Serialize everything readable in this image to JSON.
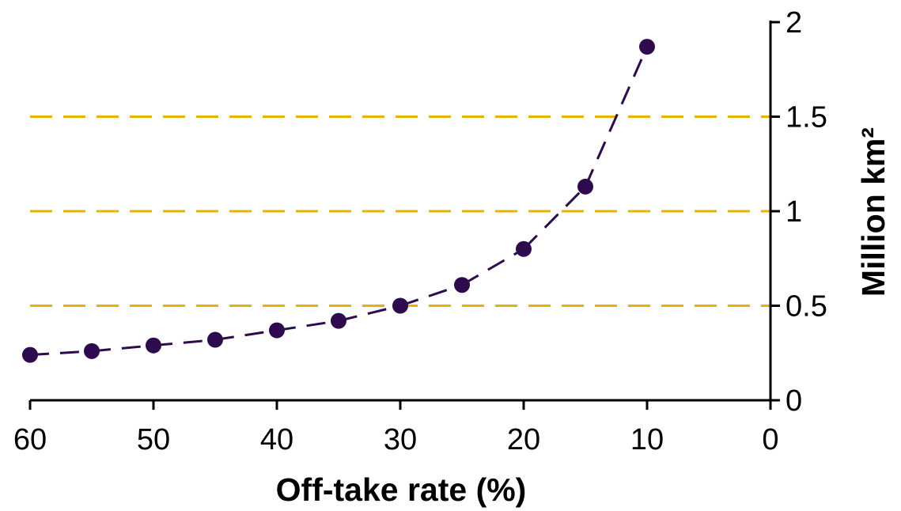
{
  "chart_data": {
    "type": "line",
    "xlabel": "Off-take rate (%)",
    "ylabel": "Million km²",
    "x_axis_reversed": true,
    "y_axis_position": "right",
    "xlim": [
      60,
      0
    ],
    "ylim": [
      0,
      2
    ],
    "x_ticks": [
      "60",
      "50",
      "40",
      "30",
      "20",
      "10",
      "0"
    ],
    "y_ticks": [
      "0",
      "0.5",
      "1",
      "1.5",
      "2"
    ],
    "grid": false,
    "series": [
      {
        "x": [
          60,
          55,
          50,
          45,
          40,
          35,
          30,
          25,
          20,
          15,
          10
        ],
        "y": [
          0.24,
          0.26,
          0.29,
          0.32,
          0.37,
          0.42,
          0.5,
          0.61,
          0.8,
          1.13,
          1.87
        ],
        "marker": "circle",
        "line_style": "dashed",
        "color": "#2e0a4f"
      }
    ],
    "reference_lines": [
      {
        "y": 0.5,
        "color": "#e8b300",
        "style": "dashed"
      },
      {
        "y": 1.0,
        "color": "#e8b300",
        "style": "dashed"
      },
      {
        "y": 1.5,
        "color": "#e8b300",
        "style": "dashed"
      }
    ]
  }
}
